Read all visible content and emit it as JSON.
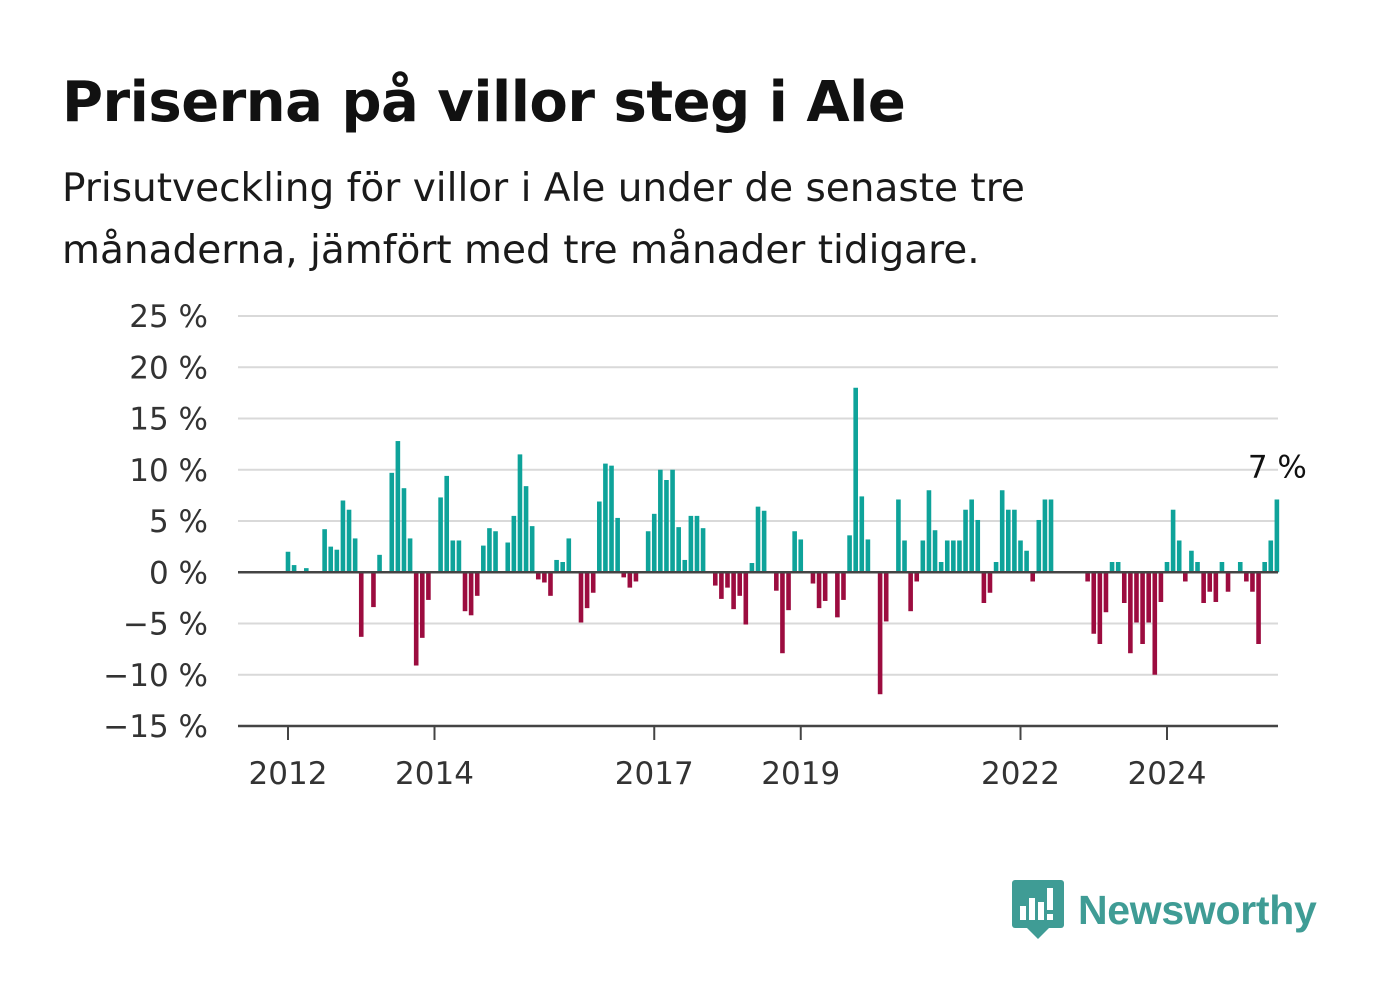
{
  "title": "Priserna på villor steg i Ale",
  "subtitle": "Prisutveckling för villor i Ale under de senaste tre månaderna, jämfört med tre månader tidigare.",
  "brand": {
    "name": "Newsworthy"
  },
  "colors": {
    "positive": "#0ea39a",
    "negative": "#9c0c3f",
    "grid": "#d9d9d9",
    "axis": "#444444",
    "brand": "#3f9c95"
  },
  "chart_data": {
    "type": "bar",
    "title": "Priserna på villor steg i Ale",
    "subtitle": "Prisutveckling för villor i Ale under de senaste tre månaderna, jämfört med tre månader tidigare.",
    "xlabel": "",
    "ylabel": "",
    "ylim": [
      -15,
      25
    ],
    "y_ticks": [
      25,
      20,
      15,
      10,
      5,
      0,
      -5,
      -10,
      -15
    ],
    "y_tick_labels": [
      "25 %",
      "20 %",
      "15 %",
      "10 %",
      "5 %",
      "0 %",
      "−5 %",
      "−10 %",
      "−15 %"
    ],
    "x_ticks": [
      {
        "year": 2012,
        "label": "2012"
      },
      {
        "year": 2014,
        "label": "2014"
      },
      {
        "year": 2017,
        "label": "2017"
      },
      {
        "year": 2019,
        "label": "2019"
      },
      {
        "year": 2022,
        "label": "2022"
      },
      {
        "year": 2024,
        "label": "2024"
      }
    ],
    "grid": true,
    "start": "2012-01",
    "frequency": "monthly",
    "values": [
      2.0,
      0.7,
      0.0,
      0.4,
      0.0,
      0.0,
      4.2,
      2.5,
      2.2,
      7.0,
      6.1,
      3.3,
      -6.3,
      0.0,
      -3.4,
      1.7,
      0.0,
      9.7,
      12.8,
      8.2,
      3.3,
      -9.1,
      -6.4,
      -2.7,
      0.0,
      7.3,
      9.4,
      3.1,
      3.1,
      -3.8,
      -4.2,
      -2.3,
      2.6,
      4.3,
      4.0,
      0.0,
      2.9,
      5.5,
      11.5,
      8.4,
      4.5,
      -0.7,
      -1.0,
      -2.3,
      1.2,
      1.0,
      3.3,
      0.0,
      -4.9,
      -3.5,
      -2.0,
      6.9,
      10.6,
      10.4,
      5.3,
      -0.5,
      -1.5,
      -0.9,
      0.0,
      4.0,
      5.7,
      10.0,
      9.0,
      10.0,
      4.4,
      1.2,
      5.5,
      5.5,
      4.3,
      0.0,
      -1.3,
      -2.6,
      -1.5,
      -3.6,
      -2.3,
      -5.1,
      0.9,
      6.4,
      6.0,
      0.0,
      -1.8,
      -7.9,
      -3.7,
      4.0,
      3.2,
      0.0,
      -1.1,
      -3.5,
      -2.8,
      0.0,
      -4.4,
      -2.7,
      3.6,
      18.0,
      7.4,
      3.2,
      0.0,
      -11.9,
      -4.8,
      0.0,
      7.1,
      3.1,
      -3.8,
      -0.9,
      3.1,
      8.0,
      4.1,
      1.0,
      3.1,
      3.1,
      3.1,
      6.1,
      7.1,
      5.1,
      -3.0,
      -2.0,
      1.0,
      8.0,
      6.1,
      6.1,
      3.1,
      2.1,
      -0.9,
      5.1,
      7.1,
      7.1,
      0.0,
      0.0,
      0.0,
      0.0,
      0.0,
      -0.9,
      -6.0,
      -7.0,
      -3.9,
      1.0,
      1.0,
      -3.0,
      -7.9,
      -4.9,
      -7.0,
      -4.9,
      -10.0,
      -2.9,
      1.0,
      6.1,
      3.1,
      -0.9,
      2.1,
      1.0,
      -3.0,
      -1.9,
      -2.9,
      1.0,
      -1.9,
      0.0,
      1.0,
      -0.9,
      -1.9,
      -7.0,
      1.0,
      3.1,
      7.1
    ],
    "annotations": [
      {
        "text": "7 %",
        "target": "last"
      }
    ]
  }
}
